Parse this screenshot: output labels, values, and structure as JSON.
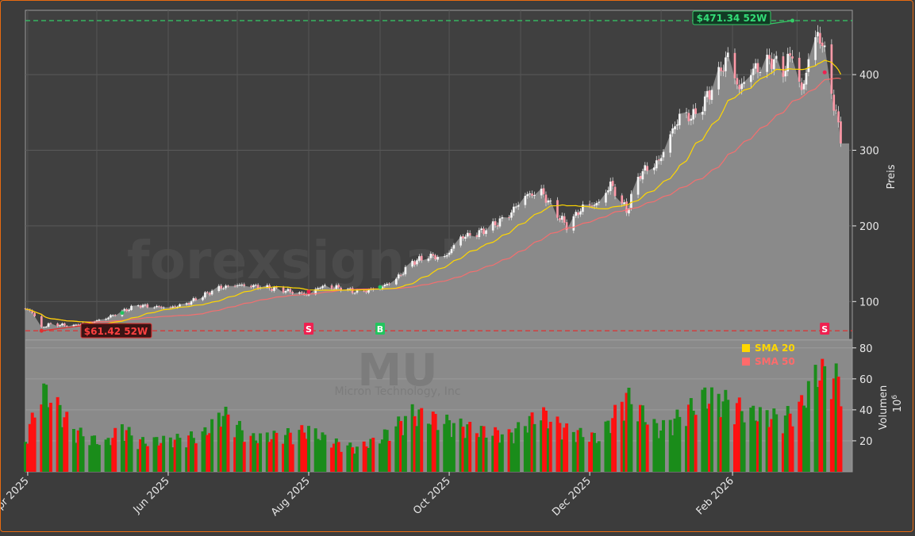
{
  "chart_data": {
    "type": "candlestick",
    "ticker": "MU",
    "company": "Micron Technology, Inc",
    "watermark": "forexsignals.trade",
    "price_axis": {
      "label": "Preis",
      "ylim": [
        50,
        485
      ],
      "ticks": [
        "100",
        "200",
        "300",
        "400"
      ]
    },
    "volume_axis": {
      "label": "Volumen",
      "unit": "10",
      "unit_exp": "6",
      "ylim": [
        0,
        85
      ],
      "ticks": [
        "20",
        "40",
        "60",
        "80"
      ]
    },
    "x_ticks": [
      "Apr 2025",
      "Jun 2025",
      "Aug 2025",
      "Oct 2025",
      "Dec 2025",
      "Feb 2026"
    ],
    "high_52w": {
      "label": "$471.34 52W",
      "value": 471.34,
      "date": "2026-02-27"
    },
    "low_52w": {
      "label": "$61.42 52W",
      "value": 61.42,
      "date": "2025-04-07"
    },
    "legend": [
      {
        "name": "SMA 20",
        "color": "#ffd700"
      },
      {
        "name": "SMA 50",
        "color": "#ff6b6b"
      }
    ],
    "signals": [
      {
        "type": "B",
        "date": "2025-05-12",
        "price": 85
      },
      {
        "type": "S",
        "date": "2025-08-01",
        "price": 113
      },
      {
        "type": "B",
        "date": "2025-09-01",
        "price": 119
      },
      {
        "type": "S",
        "date": "2026-03-13",
        "price": 403
      }
    ],
    "colors": {
      "up": "#1a8c1a",
      "down": "#ff1010",
      "sma20": "#ffd700",
      "sma50": "#ff6b6b",
      "high": "#33cc66",
      "low": "#e03030"
    },
    "price_anchors": [
      [
        "2025-03-31",
        90
      ],
      [
        "2025-04-03",
        86
      ],
      [
        "2025-04-07",
        65
      ],
      [
        "2025-04-10",
        70
      ],
      [
        "2025-04-21",
        68
      ],
      [
        "2025-04-28",
        72
      ],
      [
        "2025-05-05",
        78
      ],
      [
        "2025-05-12",
        87
      ],
      [
        "2025-05-19",
        95
      ],
      [
        "2025-05-26",
        93
      ],
      [
        "2025-06-02",
        92
      ],
      [
        "2025-06-09",
        97
      ],
      [
        "2025-06-16",
        108
      ],
      [
        "2025-06-23",
        118
      ],
      [
        "2025-07-01",
        122
      ],
      [
        "2025-07-10",
        120
      ],
      [
        "2025-07-21",
        115
      ],
      [
        "2025-07-28",
        111
      ],
      [
        "2025-08-01",
        109
      ],
      [
        "2025-08-06",
        120
      ],
      [
        "2025-08-15",
        118
      ],
      [
        "2025-08-22",
        112
      ],
      [
        "2025-09-01",
        118
      ],
      [
        "2025-09-08",
        130
      ],
      [
        "2025-09-15",
        152
      ],
      [
        "2025-09-22",
        160
      ],
      [
        "2025-09-29",
        158
      ],
      [
        "2025-10-06",
        185
      ],
      [
        "2025-10-13",
        190
      ],
      [
        "2025-10-20",
        200
      ],
      [
        "2025-10-27",
        215
      ],
      [
        "2025-11-03",
        240
      ],
      [
        "2025-11-10",
        245
      ],
      [
        "2025-11-17",
        215
      ],
      [
        "2025-11-21",
        200
      ],
      [
        "2025-11-28",
        225
      ],
      [
        "2025-12-05",
        230
      ],
      [
        "2025-12-10",
        255
      ],
      [
        "2025-12-17",
        220
      ],
      [
        "2025-12-23",
        270
      ],
      [
        "2025-12-31",
        285
      ],
      [
        "2026-01-05",
        320
      ],
      [
        "2026-01-09",
        345
      ],
      [
        "2026-01-15",
        345
      ],
      [
        "2026-01-20",
        365
      ],
      [
        "2026-01-26",
        400
      ],
      [
        "2026-01-30",
        425
      ],
      [
        "2026-02-04",
        380
      ],
      [
        "2026-02-09",
        405
      ],
      [
        "2026-02-13",
        410
      ],
      [
        "2026-02-18",
        420
      ],
      [
        "2026-02-23",
        405
      ],
      [
        "2026-02-27",
        430
      ],
      [
        "2026-03-03",
        375
      ],
      [
        "2026-03-06",
        420
      ],
      [
        "2026-03-10",
        455
      ],
      [
        "2026-03-13",
        430
      ],
      [
        "2026-03-17",
        360
      ],
      [
        "2026-03-20",
        318
      ]
    ],
    "volume_anchors": [
      [
        "2025-03-31",
        18
      ],
      [
        "2025-04-07",
        48
      ],
      [
        "2025-04-11",
        45
      ],
      [
        "2025-04-21",
        25
      ],
      [
        "2025-04-28",
        20
      ],
      [
        "2025-05-05",
        17
      ],
      [
        "2025-05-12",
        27
      ],
      [
        "2025-05-19",
        18
      ],
      [
        "2025-06-02",
        19
      ],
      [
        "2025-06-16",
        22
      ],
      [
        "2025-06-25",
        35
      ],
      [
        "2025-07-07",
        20
      ],
      [
        "2025-07-21",
        22
      ],
      [
        "2025-08-01",
        25
      ],
      [
        "2025-08-11",
        18
      ],
      [
        "2025-08-22",
        14
      ],
      [
        "2025-09-01",
        20
      ],
      [
        "2025-09-15",
        35
      ],
      [
        "2025-09-29",
        30
      ],
      [
        "2025-10-13",
        25
      ],
      [
        "2025-10-27",
        22
      ],
      [
        "2025-11-10",
        35
      ],
      [
        "2025-11-21",
        25
      ],
      [
        "2025-12-05",
        20
      ],
      [
        "2025-12-17",
        45
      ],
      [
        "2025-12-31",
        25
      ],
      [
        "2026-01-09",
        33
      ],
      [
        "2026-01-20",
        45
      ],
      [
        "2026-01-30",
        42
      ],
      [
        "2026-02-09",
        35
      ],
      [
        "2026-02-23",
        32
      ],
      [
        "2026-03-03",
        40
      ],
      [
        "2026-03-10",
        60
      ],
      [
        "2026-03-20",
        55
      ]
    ]
  }
}
